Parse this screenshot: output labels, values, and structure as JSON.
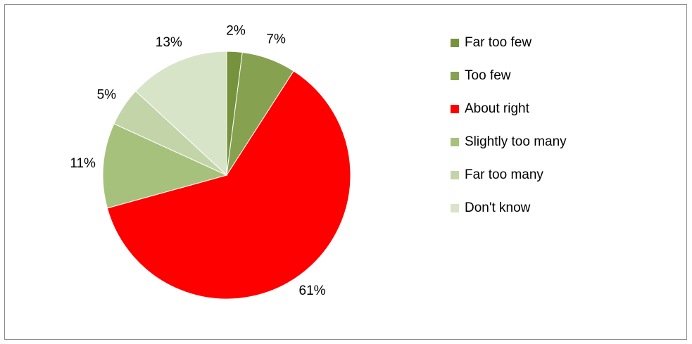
{
  "chart_data": {
    "type": "pie",
    "categories": [
      "Far too few",
      "Too few",
      "About right",
      "Slightly too many",
      "Far too many",
      "Don't know"
    ],
    "values": [
      2,
      7,
      61,
      11,
      5,
      13
    ],
    "value_labels": [
      "2%",
      "7%",
      "61%",
      "11%",
      "5%",
      "13%"
    ],
    "colors": [
      "#76923c",
      "#86a150",
      "#ff0000",
      "#a6c17b",
      "#c3d4a8",
      "#d8e4c8"
    ],
    "start_angle": "12 o'clock",
    "direction": "clockwise",
    "legend_position": "right",
    "title": ""
  }
}
